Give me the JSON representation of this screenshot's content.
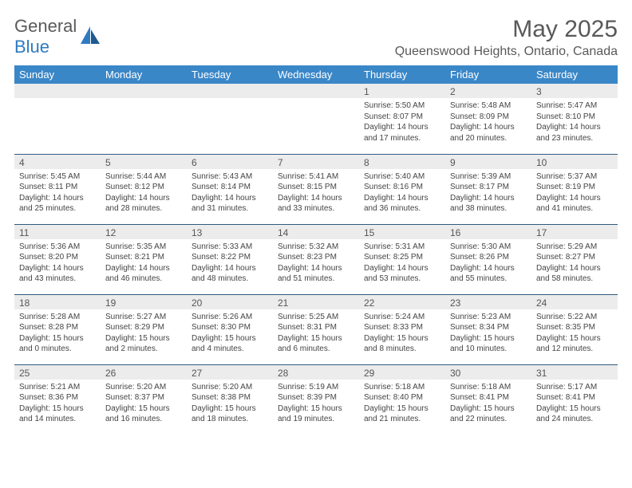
{
  "logo": {
    "text_a": "General",
    "text_b": "Blue"
  },
  "title": "May 2025",
  "location": "Queenswood Heights, Ontario, Canada",
  "colors": {
    "header_bg": "#3a87c8",
    "header_text": "#ffffff",
    "daynum_bg": "#ececec",
    "border": "#2f5b80",
    "logo_gray": "#5a5a5a",
    "logo_blue": "#2f7bbf"
  },
  "weekdays": [
    "Sunday",
    "Monday",
    "Tuesday",
    "Wednesday",
    "Thursday",
    "Friday",
    "Saturday"
  ],
  "weeks": [
    [
      {
        "n": "",
        "sr": "",
        "ss": "",
        "dl": ""
      },
      {
        "n": "",
        "sr": "",
        "ss": "",
        "dl": ""
      },
      {
        "n": "",
        "sr": "",
        "ss": "",
        "dl": ""
      },
      {
        "n": "",
        "sr": "",
        "ss": "",
        "dl": ""
      },
      {
        "n": "1",
        "sr": "Sunrise: 5:50 AM",
        "ss": "Sunset: 8:07 PM",
        "dl": "Daylight: 14 hours and 17 minutes."
      },
      {
        "n": "2",
        "sr": "Sunrise: 5:48 AM",
        "ss": "Sunset: 8:09 PM",
        "dl": "Daylight: 14 hours and 20 minutes."
      },
      {
        "n": "3",
        "sr": "Sunrise: 5:47 AM",
        "ss": "Sunset: 8:10 PM",
        "dl": "Daylight: 14 hours and 23 minutes."
      }
    ],
    [
      {
        "n": "4",
        "sr": "Sunrise: 5:45 AM",
        "ss": "Sunset: 8:11 PM",
        "dl": "Daylight: 14 hours and 25 minutes."
      },
      {
        "n": "5",
        "sr": "Sunrise: 5:44 AM",
        "ss": "Sunset: 8:12 PM",
        "dl": "Daylight: 14 hours and 28 minutes."
      },
      {
        "n": "6",
        "sr": "Sunrise: 5:43 AM",
        "ss": "Sunset: 8:14 PM",
        "dl": "Daylight: 14 hours and 31 minutes."
      },
      {
        "n": "7",
        "sr": "Sunrise: 5:41 AM",
        "ss": "Sunset: 8:15 PM",
        "dl": "Daylight: 14 hours and 33 minutes."
      },
      {
        "n": "8",
        "sr": "Sunrise: 5:40 AM",
        "ss": "Sunset: 8:16 PM",
        "dl": "Daylight: 14 hours and 36 minutes."
      },
      {
        "n": "9",
        "sr": "Sunrise: 5:39 AM",
        "ss": "Sunset: 8:17 PM",
        "dl": "Daylight: 14 hours and 38 minutes."
      },
      {
        "n": "10",
        "sr": "Sunrise: 5:37 AM",
        "ss": "Sunset: 8:19 PM",
        "dl": "Daylight: 14 hours and 41 minutes."
      }
    ],
    [
      {
        "n": "11",
        "sr": "Sunrise: 5:36 AM",
        "ss": "Sunset: 8:20 PM",
        "dl": "Daylight: 14 hours and 43 minutes."
      },
      {
        "n": "12",
        "sr": "Sunrise: 5:35 AM",
        "ss": "Sunset: 8:21 PM",
        "dl": "Daylight: 14 hours and 46 minutes."
      },
      {
        "n": "13",
        "sr": "Sunrise: 5:33 AM",
        "ss": "Sunset: 8:22 PM",
        "dl": "Daylight: 14 hours and 48 minutes."
      },
      {
        "n": "14",
        "sr": "Sunrise: 5:32 AM",
        "ss": "Sunset: 8:23 PM",
        "dl": "Daylight: 14 hours and 51 minutes."
      },
      {
        "n": "15",
        "sr": "Sunrise: 5:31 AM",
        "ss": "Sunset: 8:25 PM",
        "dl": "Daylight: 14 hours and 53 minutes."
      },
      {
        "n": "16",
        "sr": "Sunrise: 5:30 AM",
        "ss": "Sunset: 8:26 PM",
        "dl": "Daylight: 14 hours and 55 minutes."
      },
      {
        "n": "17",
        "sr": "Sunrise: 5:29 AM",
        "ss": "Sunset: 8:27 PM",
        "dl": "Daylight: 14 hours and 58 minutes."
      }
    ],
    [
      {
        "n": "18",
        "sr": "Sunrise: 5:28 AM",
        "ss": "Sunset: 8:28 PM",
        "dl": "Daylight: 15 hours and 0 minutes."
      },
      {
        "n": "19",
        "sr": "Sunrise: 5:27 AM",
        "ss": "Sunset: 8:29 PM",
        "dl": "Daylight: 15 hours and 2 minutes."
      },
      {
        "n": "20",
        "sr": "Sunrise: 5:26 AM",
        "ss": "Sunset: 8:30 PM",
        "dl": "Daylight: 15 hours and 4 minutes."
      },
      {
        "n": "21",
        "sr": "Sunrise: 5:25 AM",
        "ss": "Sunset: 8:31 PM",
        "dl": "Daylight: 15 hours and 6 minutes."
      },
      {
        "n": "22",
        "sr": "Sunrise: 5:24 AM",
        "ss": "Sunset: 8:33 PM",
        "dl": "Daylight: 15 hours and 8 minutes."
      },
      {
        "n": "23",
        "sr": "Sunrise: 5:23 AM",
        "ss": "Sunset: 8:34 PM",
        "dl": "Daylight: 15 hours and 10 minutes."
      },
      {
        "n": "24",
        "sr": "Sunrise: 5:22 AM",
        "ss": "Sunset: 8:35 PM",
        "dl": "Daylight: 15 hours and 12 minutes."
      }
    ],
    [
      {
        "n": "25",
        "sr": "Sunrise: 5:21 AM",
        "ss": "Sunset: 8:36 PM",
        "dl": "Daylight: 15 hours and 14 minutes."
      },
      {
        "n": "26",
        "sr": "Sunrise: 5:20 AM",
        "ss": "Sunset: 8:37 PM",
        "dl": "Daylight: 15 hours and 16 minutes."
      },
      {
        "n": "27",
        "sr": "Sunrise: 5:20 AM",
        "ss": "Sunset: 8:38 PM",
        "dl": "Daylight: 15 hours and 18 minutes."
      },
      {
        "n": "28",
        "sr": "Sunrise: 5:19 AM",
        "ss": "Sunset: 8:39 PM",
        "dl": "Daylight: 15 hours and 19 minutes."
      },
      {
        "n": "29",
        "sr": "Sunrise: 5:18 AM",
        "ss": "Sunset: 8:40 PM",
        "dl": "Daylight: 15 hours and 21 minutes."
      },
      {
        "n": "30",
        "sr": "Sunrise: 5:18 AM",
        "ss": "Sunset: 8:41 PM",
        "dl": "Daylight: 15 hours and 22 minutes."
      },
      {
        "n": "31",
        "sr": "Sunrise: 5:17 AM",
        "ss": "Sunset: 8:41 PM",
        "dl": "Daylight: 15 hours and 24 minutes."
      }
    ]
  ]
}
